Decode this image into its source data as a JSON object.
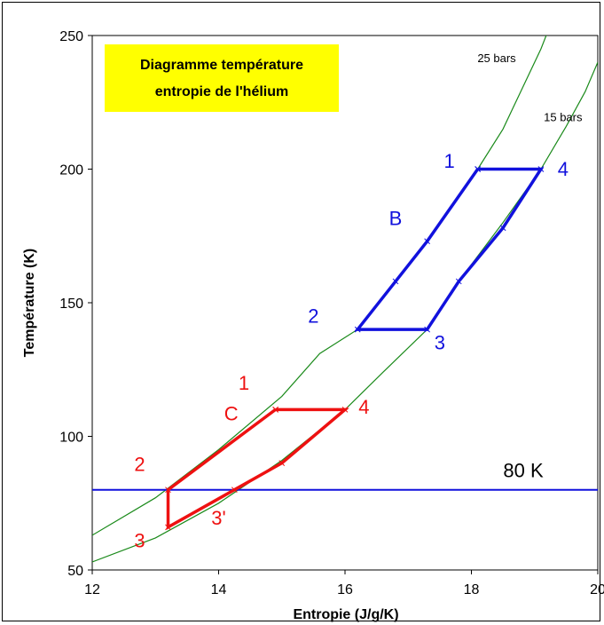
{
  "chart_data": {
    "type": "line",
    "title_lines": [
      "Diagramme température",
      "entropie de l'hélium"
    ],
    "title_bg_color": "#ffff00",
    "xlabel": "Entropie (J/g/K)",
    "ylabel": "Température (K)",
    "xlim": [
      12,
      20
    ],
    "ylim": [
      50,
      250
    ],
    "xticks": [
      "12",
      "14",
      "16",
      "18",
      "20"
    ],
    "yticks": [
      "50",
      "100",
      "150",
      "200",
      "250"
    ],
    "grid": false,
    "isobars": [
      {
        "name": "25 bars",
        "color": "#1a8a1a",
        "points": [
          [
            12,
            63
          ],
          [
            13,
            77
          ],
          [
            14,
            95
          ],
          [
            15,
            115
          ],
          [
            15.6,
            131
          ],
          [
            16.2,
            140
          ],
          [
            16.8,
            158
          ],
          [
            17.3,
            173
          ],
          [
            17.7,
            187
          ],
          [
            18.1,
            200
          ],
          [
            18.5,
            215
          ],
          [
            18.8,
            230
          ],
          [
            19.1,
            245
          ],
          [
            19.2,
            251
          ]
        ]
      },
      {
        "name": "15 bars",
        "color": "#1a8a1a",
        "points": [
          [
            12,
            53
          ],
          [
            13,
            62
          ],
          [
            14,
            75
          ],
          [
            15,
            91
          ],
          [
            16,
            110
          ],
          [
            16.6,
            124
          ],
          [
            17.3,
            140
          ],
          [
            17.8,
            158
          ],
          [
            18.5,
            180
          ],
          [
            19.1,
            200
          ],
          [
            19.5,
            216
          ],
          [
            19.8,
            229
          ],
          [
            20,
            240
          ]
        ]
      }
    ],
    "cycles": [
      {
        "label": "B",
        "color": "#1111dd",
        "points": [
          [
            18.1,
            200
          ],
          [
            19.1,
            200
          ],
          [
            18.5,
            178
          ],
          [
            17.8,
            158
          ],
          [
            17.3,
            140
          ],
          [
            16.2,
            140
          ],
          [
            16.8,
            158
          ],
          [
            17.3,
            173
          ],
          [
            18.1,
            200
          ]
        ],
        "point_labels": [
          {
            "text": "1",
            "x": 17.65,
            "y": 200.5
          },
          {
            "text": "4",
            "x": 19.45,
            "y": 197.5
          },
          {
            "text": "2",
            "x": 15.5,
            "y": 142.5
          },
          {
            "text": "3",
            "x": 17.5,
            "y": 132.5
          },
          {
            "text": "B",
            "x": 16.8,
            "y": 179
          }
        ]
      },
      {
        "label": "C",
        "color": "#ee1111",
        "points": [
          [
            14.9,
            110
          ],
          [
            16,
            110
          ],
          [
            15,
            90
          ],
          [
            14.25,
            80
          ],
          [
            13.2,
            66
          ],
          [
            13.2,
            80
          ],
          [
            14.9,
            110
          ]
        ],
        "point_labels": [
          {
            "text": "1",
            "x": 14.4,
            "y": 117.5
          },
          {
            "text": "4",
            "x": 16.3,
            "y": 108.5
          },
          {
            "text": "C",
            "x": 14.2,
            "y": 106
          },
          {
            "text": "2",
            "x": 12.75,
            "y": 87
          },
          {
            "text": "3'",
            "x": 14.0,
            "y": 67
          },
          {
            "text": "3",
            "x": 12.75,
            "y": 58.5
          }
        ]
      }
    ],
    "hline": {
      "y": 80,
      "label": "80 K",
      "color": "#1111dd"
    },
    "annotations": [
      {
        "text": "25 bars",
        "x": 18.4,
        "y": 240
      },
      {
        "text": "15 bars",
        "x": 19.45,
        "y": 218
      }
    ]
  }
}
